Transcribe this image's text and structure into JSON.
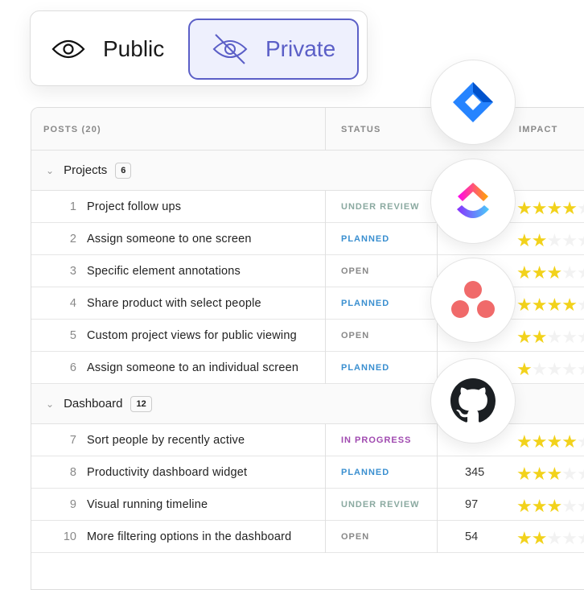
{
  "visibility": {
    "public_label": "Public",
    "private_label": "Private",
    "selected": "Private",
    "accent": "#5b5fc7"
  },
  "table": {
    "headers": {
      "posts": "POSTS (20)",
      "status": "STATUS",
      "impact": "IMPACT"
    },
    "groups": [
      {
        "name": "Projects",
        "count": "6",
        "rows": [
          {
            "n": "1",
            "title": "Project follow ups",
            "status": "UNDER REVIEW",
            "votes": "",
            "stars": 4
          },
          {
            "n": "2",
            "title": "Assign someone to one screen",
            "status": "PLANNED",
            "votes": "",
            "stars": 2
          },
          {
            "n": "3",
            "title": "Specific element annotations",
            "status": "OPEN",
            "votes": "",
            "stars": 3
          },
          {
            "n": "4",
            "title": "Share product with select people",
            "status": "PLANNED",
            "votes": "",
            "stars": 4
          },
          {
            "n": "5",
            "title": "Custom project views for public viewing",
            "status": "OPEN",
            "votes": "",
            "stars": 2
          },
          {
            "n": "6",
            "title": "Assign someone to an individual screen",
            "status": "PLANNED",
            "votes": "",
            "stars": 1
          }
        ]
      },
      {
        "name": "Dashboard",
        "count": "12",
        "rows": [
          {
            "n": "7",
            "title": "Sort people by recently active",
            "status": "IN PROGRESS",
            "votes": "",
            "stars": 4
          },
          {
            "n": "8",
            "title": "Productivity dashboard widget",
            "status": "PLANNED",
            "votes": "345",
            "stars": 3
          },
          {
            "n": "9",
            "title": "Visual running timeline",
            "status": "UNDER REVIEW",
            "votes": "97",
            "stars": 3
          },
          {
            "n": "10",
            "title": "More filtering options in the dashboard",
            "status": "OPEN",
            "votes": "54",
            "stars": 2
          }
        ]
      }
    ],
    "status_colors": {
      "UNDER REVIEW": "#8aa9a0",
      "PLANNED": "#3a8fd0",
      "OPEN": "#888888",
      "IN PROGRESS": "#a04ab0"
    }
  },
  "integrations": [
    "jira-icon",
    "clickup-icon",
    "asana-icon",
    "github-icon"
  ]
}
